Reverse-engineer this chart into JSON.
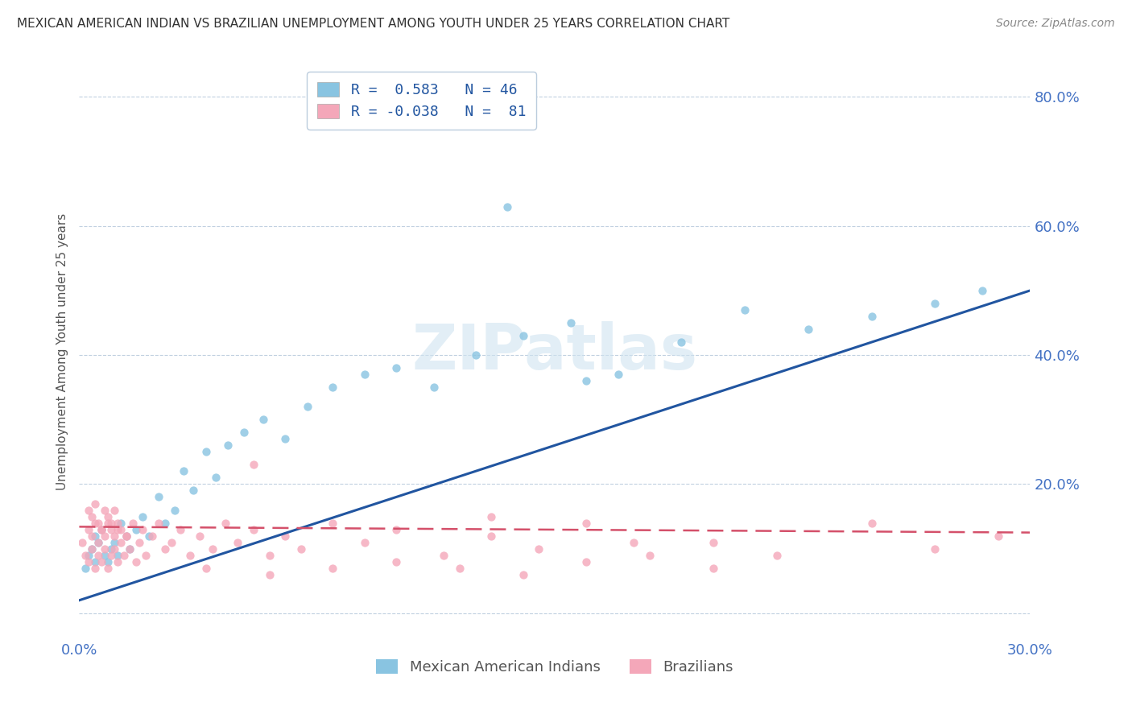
{
  "title": "MEXICAN AMERICAN INDIAN VS BRAZILIAN UNEMPLOYMENT AMONG YOUTH UNDER 25 YEARS CORRELATION CHART",
  "source": "Source: ZipAtlas.com",
  "ylabel": "Unemployment Among Youth under 25 years",
  "xlim": [
    0.0,
    0.3
  ],
  "ylim": [
    -0.04,
    0.85
  ],
  "yticks": [
    0.0,
    0.2,
    0.4,
    0.6,
    0.8
  ],
  "yticklabels": [
    "",
    "20.0%",
    "40.0%",
    "60.0%",
    "80.0%"
  ],
  "blue_color": "#89c4e1",
  "pink_color": "#f4a7b9",
  "blue_line_color": "#2155a0",
  "pink_line_color": "#d4506a",
  "watermark": "ZIPatlas",
  "legend_R1": "R =  0.583",
  "legend_N1": "N = 46",
  "legend_R2": "R = -0.038",
  "legend_N2": "N =  81",
  "series1_label": "Mexican American Indians",
  "series2_label": "Brazilians",
  "blue_x": [
    0.002,
    0.003,
    0.004,
    0.005,
    0.005,
    0.006,
    0.007,
    0.008,
    0.009,
    0.01,
    0.011,
    0.012,
    0.013,
    0.015,
    0.016,
    0.018,
    0.02,
    0.022,
    0.025,
    0.027,
    0.03,
    0.033,
    0.036,
    0.04,
    0.043,
    0.047,
    0.052,
    0.058,
    0.065,
    0.072,
    0.08,
    0.09,
    0.1,
    0.112,
    0.125,
    0.14,
    0.155,
    0.17,
    0.19,
    0.21,
    0.23,
    0.25,
    0.27,
    0.135,
    0.16,
    0.285
  ],
  "blue_y": [
    0.07,
    0.09,
    0.1,
    0.12,
    0.08,
    0.11,
    0.13,
    0.09,
    0.08,
    0.1,
    0.11,
    0.09,
    0.14,
    0.12,
    0.1,
    0.13,
    0.15,
    0.12,
    0.18,
    0.14,
    0.16,
    0.22,
    0.19,
    0.25,
    0.21,
    0.26,
    0.28,
    0.3,
    0.27,
    0.32,
    0.35,
    0.37,
    0.38,
    0.35,
    0.4,
    0.43,
    0.45,
    0.37,
    0.42,
    0.47,
    0.44,
    0.46,
    0.48,
    0.63,
    0.36,
    0.5
  ],
  "pink_x": [
    0.001,
    0.002,
    0.003,
    0.003,
    0.004,
    0.004,
    0.005,
    0.005,
    0.006,
    0.006,
    0.007,
    0.007,
    0.008,
    0.008,
    0.009,
    0.009,
    0.01,
    0.01,
    0.011,
    0.011,
    0.012,
    0.012,
    0.013,
    0.013,
    0.014,
    0.015,
    0.016,
    0.017,
    0.018,
    0.019,
    0.02,
    0.021,
    0.023,
    0.025,
    0.027,
    0.029,
    0.032,
    0.035,
    0.038,
    0.042,
    0.046,
    0.05,
    0.055,
    0.06,
    0.065,
    0.07,
    0.08,
    0.09,
    0.1,
    0.115,
    0.13,
    0.145,
    0.16,
    0.175,
    0.055,
    0.13,
    0.2,
    0.22,
    0.25,
    0.27,
    0.29,
    0.04,
    0.06,
    0.08,
    0.1,
    0.12,
    0.14,
    0.16,
    0.18,
    0.2,
    0.003,
    0.004,
    0.005,
    0.006,
    0.007,
    0.008,
    0.009,
    0.01,
    0.011,
    0.012,
    0.015
  ],
  "pink_y": [
    0.11,
    0.09,
    0.13,
    0.08,
    0.12,
    0.1,
    0.14,
    0.07,
    0.11,
    0.09,
    0.13,
    0.08,
    0.12,
    0.1,
    0.14,
    0.07,
    0.13,
    0.09,
    0.12,
    0.1,
    0.14,
    0.08,
    0.11,
    0.13,
    0.09,
    0.12,
    0.1,
    0.14,
    0.08,
    0.11,
    0.13,
    0.09,
    0.12,
    0.14,
    0.1,
    0.11,
    0.13,
    0.09,
    0.12,
    0.1,
    0.14,
    0.11,
    0.13,
    0.09,
    0.12,
    0.1,
    0.14,
    0.11,
    0.13,
    0.09,
    0.12,
    0.1,
    0.14,
    0.11,
    0.23,
    0.15,
    0.11,
    0.09,
    0.14,
    0.1,
    0.12,
    0.07,
    0.06,
    0.07,
    0.08,
    0.07,
    0.06,
    0.08,
    0.09,
    0.07,
    0.16,
    0.15,
    0.17,
    0.14,
    0.13,
    0.16,
    0.15,
    0.14,
    0.16,
    0.13,
    0.12
  ],
  "background_color": "#ffffff",
  "grid_color": "#c0d0e0",
  "title_color": "#333333",
  "axis_label_color": "#4472c4",
  "tick_color": "#4472c4",
  "blue_trend_x0": 0.0,
  "blue_trend_y0": 0.02,
  "blue_trend_x1": 0.3,
  "blue_trend_y1": 0.5,
  "pink_trend_x0": 0.0,
  "pink_trend_y0": 0.134,
  "pink_trend_x1": 0.3,
  "pink_trend_y1": 0.125
}
